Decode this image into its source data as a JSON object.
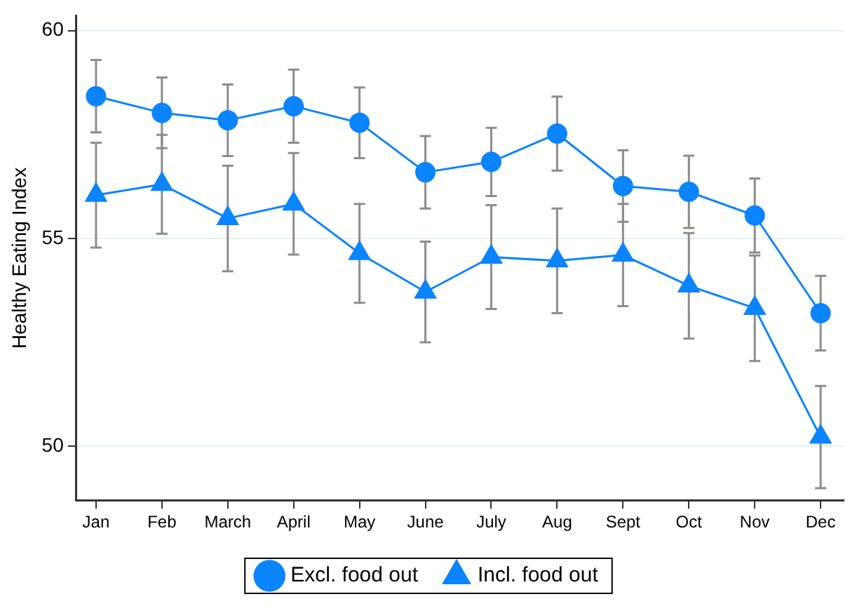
{
  "chart_data": {
    "type": "line",
    "ylabel": "Healthy Eating Index",
    "categories": [
      "Jan",
      "Feb",
      "March",
      "April",
      "May",
      "June",
      "July",
      "Aug",
      "Sept",
      "Oct",
      "Nov",
      "Dec"
    ],
    "series": [
      {
        "name": "Excl. food out",
        "color": "#0a84ff",
        "marker": "circle",
        "values": [
          58.42,
          58.02,
          57.84,
          58.18,
          57.78,
          56.59,
          56.84,
          57.52,
          56.26,
          56.12,
          55.55,
          53.2
        ],
        "errors": [
          0.87,
          0.85,
          0.86,
          0.88,
          0.85,
          0.87,
          0.82,
          0.89,
          0.86,
          0.87,
          0.89,
          0.9
        ]
      },
      {
        "name": "Incl. food out",
        "color": "#0a84ff",
        "marker": "triangle",
        "values": [
          56.04,
          56.3,
          55.48,
          55.83,
          54.64,
          53.71,
          54.55,
          54.46,
          54.6,
          53.86,
          53.32,
          50.22
        ],
        "errors": [
          1.26,
          1.19,
          1.27,
          1.22,
          1.19,
          1.21,
          1.25,
          1.26,
          1.23,
          1.27,
          1.27,
          1.23
        ]
      }
    ],
    "ylim": [
      48.7,
      60.35
    ],
    "yticks": [
      50,
      55,
      60
    ],
    "grid": "y",
    "legend": "bottom",
    "line_style": "solid"
  }
}
